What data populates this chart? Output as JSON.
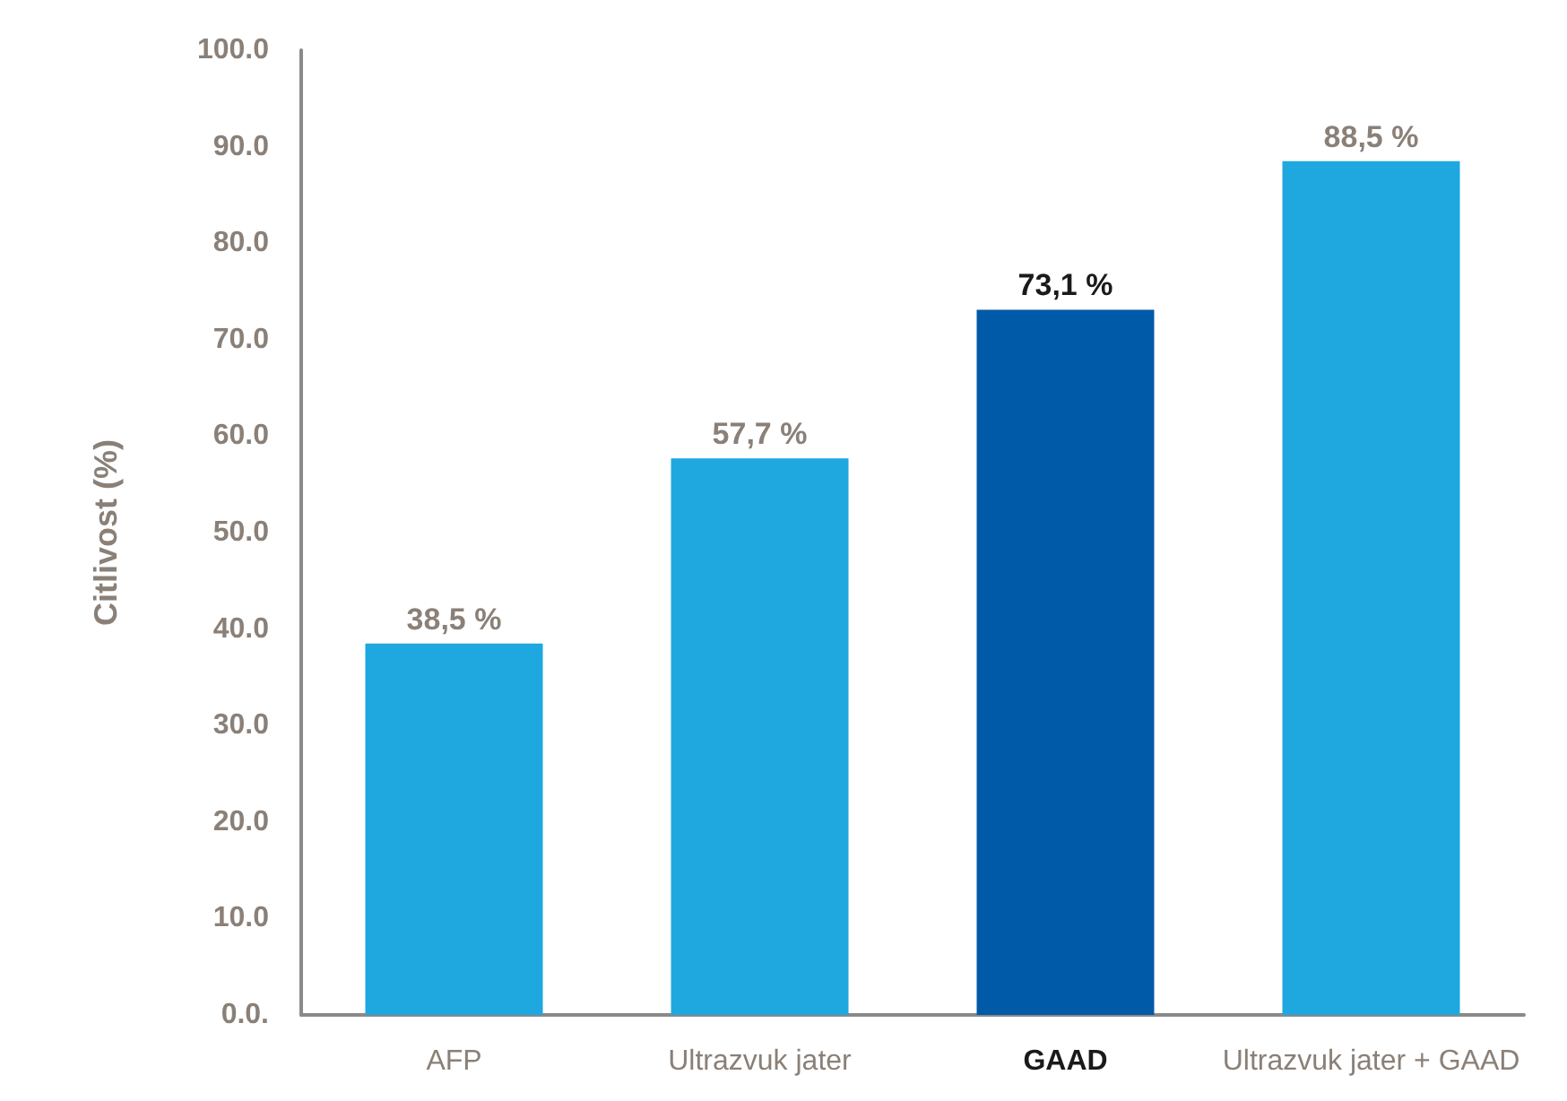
{
  "chart_data": {
    "type": "bar",
    "ylabel": "Citlivost (%)",
    "categories": [
      "AFP",
      "Ultrazvuk jater",
      "GAAD",
      "Ultrazvuk jater + GAAD"
    ],
    "values": [
      38.5,
      57.7,
      73.1,
      88.5
    ],
    "colors": [
      "#1fa8e0",
      "#1fa8e0",
      "#005aa8",
      "#1fa8e0"
    ],
    "value_labels": [
      "38,5 %",
      "57,7 %",
      "73,1 %",
      "88,5 %"
    ],
    "ylim": [
      0,
      100
    ],
    "yticks": [
      {
        "value": 0,
        "label": "0.0."
      },
      {
        "value": 10,
        "label": "10.0"
      },
      {
        "value": 20,
        "label": "20.0"
      },
      {
        "value": 30,
        "label": "30.0"
      },
      {
        "value": 40,
        "label": "40.0"
      },
      {
        "value": 50,
        "label": "50.0"
      },
      {
        "value": 60,
        "label": "60.0"
      },
      {
        "value": 70,
        "label": "70.0"
      },
      {
        "value": 80,
        "label": "80.0"
      },
      {
        "value": 90,
        "label": "90.0"
      },
      {
        "value": 100,
        "label": "100.0"
      }
    ],
    "grid": false
  }
}
